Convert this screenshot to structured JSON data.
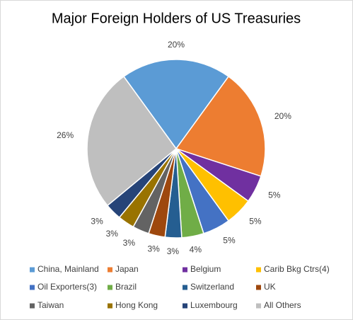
{
  "chart_data": {
    "type": "pie",
    "title": "Major Foreign Holders of US Treasuries",
    "categories": [
      "China, Mainland",
      "Japan",
      "Belgium",
      "Carib Bkg Ctrs(4)",
      "Oil Exporters(3)",
      "Brazil",
      "Switzerland",
      "UK",
      "Taiwan",
      "Hong Kong",
      "Luxembourg",
      "All Others"
    ],
    "values": [
      20,
      20,
      5,
      5,
      5,
      4,
      3,
      3,
      3,
      3,
      3,
      26
    ],
    "value_labels": [
      "20%",
      "20%",
      "5%",
      "5%",
      "5%",
      "4%",
      "3%",
      "3%",
      "3%",
      "3%",
      "3%",
      "26%"
    ],
    "colors": [
      "#5b9bd5",
      "#ed7d31",
      "#7030a0",
      "#ffc000",
      "#4472c4",
      "#70ad47",
      "#255e91",
      "#9e480e",
      "#636363",
      "#997300",
      "#264478",
      "#bfbfbf"
    ],
    "legend": "bottom"
  }
}
